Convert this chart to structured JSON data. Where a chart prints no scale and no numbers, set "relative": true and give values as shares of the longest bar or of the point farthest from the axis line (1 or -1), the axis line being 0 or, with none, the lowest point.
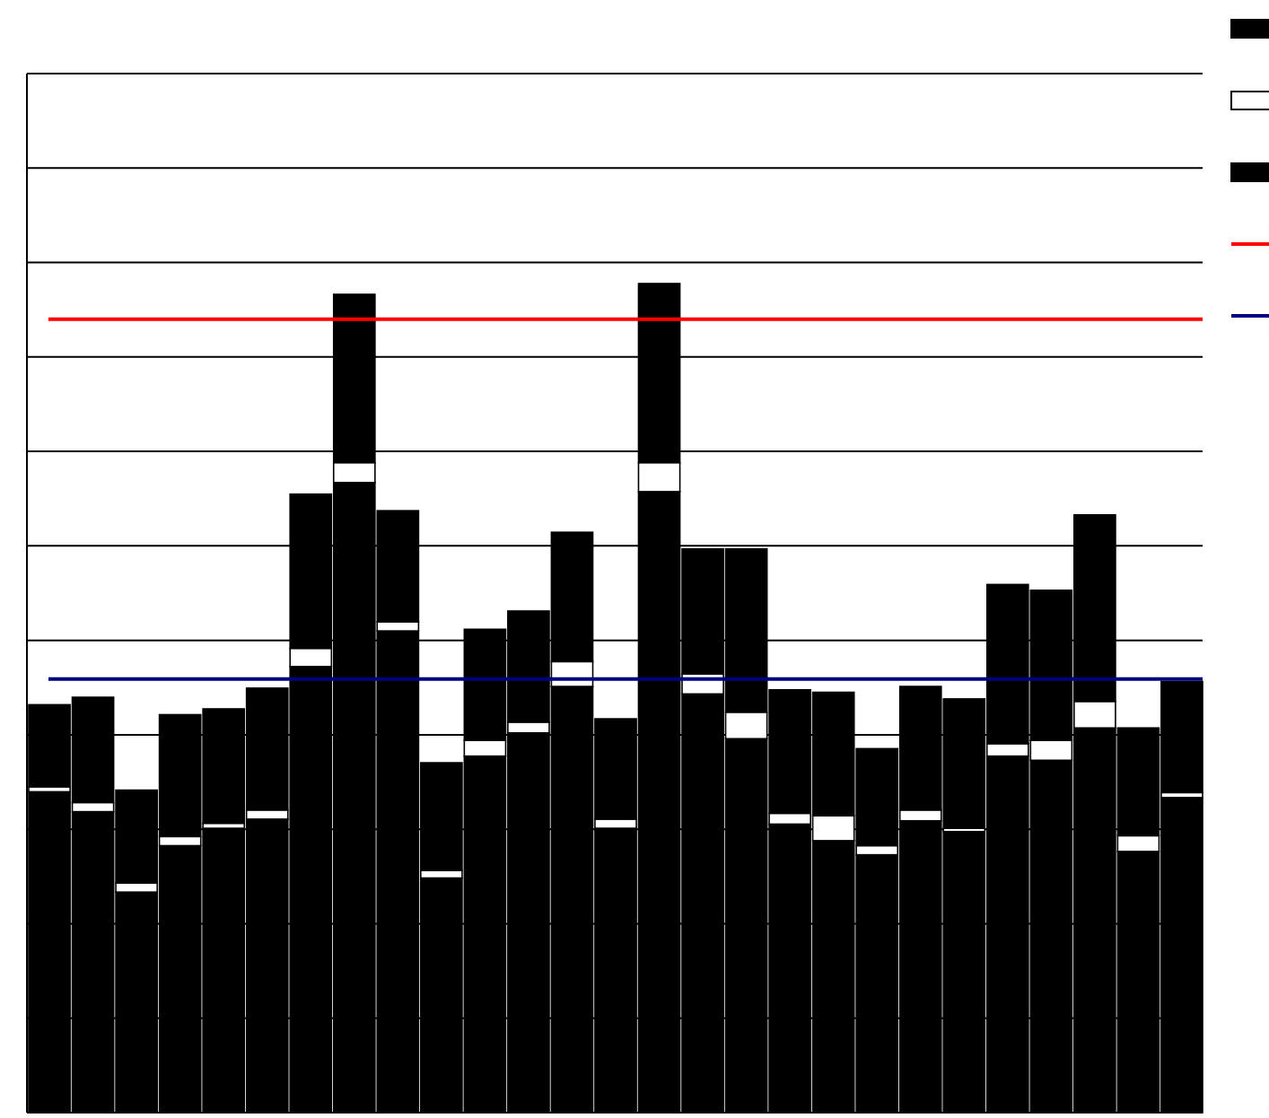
{
  "chart_data": {
    "type": "bar",
    "relative": true,
    "stacked": true,
    "grid": true,
    "categories": [
      null,
      null,
      null,
      null,
      null,
      null,
      null,
      null,
      null,
      null,
      null,
      null,
      null,
      null,
      null,
      null,
      null,
      null,
      null,
      null,
      null,
      null,
      null,
      null,
      null,
      null,
      null
    ],
    "series": [
      {
        "color": "#000000",
        "values": [
          0.387,
          0.363,
          0.266,
          0.322,
          0.343,
          0.354,
          0.538,
          0.76,
          0.581,
          0.283,
          0.43,
          0.458,
          0.514,
          0.343,
          0.749,
          0.505,
          0.451,
          0.348,
          0.328,
          0.311,
          0.352,
          0.339,
          0.43,
          0.425,
          0.464,
          0.315,
          0.38
        ]
      },
      {
        "color": "#ffffff",
        "values": [
          0.006,
          0.011,
          0.011,
          0.011,
          0.006,
          0.011,
          0.022,
          0.024,
          0.011,
          0.009,
          0.019,
          0.013,
          0.03,
          0.011,
          0.035,
          0.024,
          0.032,
          0.013,
          0.03,
          0.011,
          0.013,
          0.004,
          0.015,
          0.024,
          0.032,
          0.019,
          0.006
        ]
      },
      {
        "color": "#000000",
        "values": [
          0.099,
          0.127,
          0.112,
          0.147,
          0.138,
          0.147,
          0.186,
          0.203,
          0.134,
          0.13,
          0.134,
          0.134,
          0.156,
          0.121,
          0.216,
          0.151,
          0.197,
          0.149,
          0.149,
          0.117,
          0.149,
          0.156,
          0.192,
          0.181,
          0.225,
          0.13,
          0.134
        ]
      }
    ],
    "ref_lines": [
      {
        "axis": "y",
        "value": 0.957,
        "color": "#ff0000"
      },
      {
        "axis": "y",
        "value": 0.523,
        "color": "#000080"
      }
    ]
  }
}
